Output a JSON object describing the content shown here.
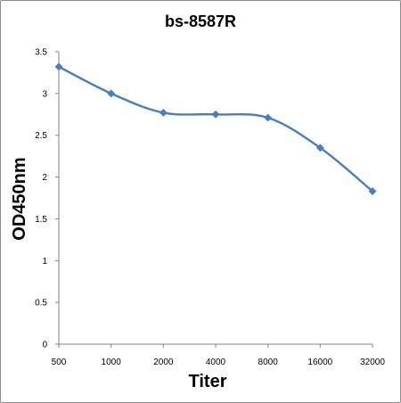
{
  "chart_data": {
    "type": "line",
    "title": "bs-8587R",
    "xlabel": "Titer",
    "ylabel": "OD450nm",
    "categories": [
      "500",
      "1000",
      "2000",
      "4000",
      "8000",
      "16000",
      "32000"
    ],
    "series": [
      {
        "values": [
          3.32,
          3.0,
          2.77,
          2.75,
          2.71,
          2.35,
          1.83
        ],
        "color": "#4a7ebb",
        "marker": "diamond"
      }
    ],
    "yticks": [
      "0",
      "0.5",
      "1",
      "1.5",
      "2",
      "2.5",
      "3",
      "3.5"
    ],
    "ylim": [
      0,
      3.5
    ],
    "grid": false,
    "legend": "none",
    "line_style": "smoothed"
  }
}
